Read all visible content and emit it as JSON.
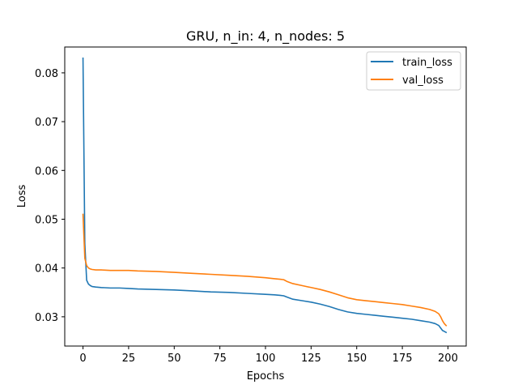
{
  "chart_data": {
    "type": "line",
    "title": "GRU, n_in: 4, n_nodes: 5",
    "xlabel": "Epochs",
    "ylabel": "Loss",
    "xlim": [
      -10,
      210
    ],
    "ylim": [
      0.024,
      0.0853
    ],
    "xticks": [
      0,
      25,
      50,
      75,
      100,
      125,
      150,
      175,
      200
    ],
    "yticks": [
      0.03,
      0.04,
      0.05,
      0.06,
      0.07,
      0.08
    ],
    "ytick_labels": [
      "0.03",
      "0.04",
      "0.05",
      "0.06",
      "0.07",
      "0.08"
    ],
    "legend_position": "upper-right",
    "series": [
      {
        "name": "train_loss",
        "color": "#1f77b4",
        "x": [
          0,
          1,
          2,
          3,
          4,
          5,
          7,
          10,
          15,
          20,
          25,
          30,
          40,
          50,
          60,
          70,
          80,
          90,
          100,
          105,
          108,
          110,
          112,
          115,
          120,
          125,
          130,
          135,
          140,
          145,
          150,
          155,
          160,
          165,
          170,
          175,
          180,
          185,
          190,
          193,
          195,
          196,
          197,
          198,
          199
        ],
        "y": [
          0.083,
          0.045,
          0.0375,
          0.0367,
          0.0364,
          0.0362,
          0.0361,
          0.036,
          0.0359,
          0.0359,
          0.0358,
          0.0357,
          0.0356,
          0.0355,
          0.0353,
          0.0351,
          0.035,
          0.0348,
          0.0346,
          0.0345,
          0.0344,
          0.0343,
          0.034,
          0.0336,
          0.0333,
          0.033,
          0.0326,
          0.0321,
          0.0315,
          0.031,
          0.0307,
          0.0305,
          0.0303,
          0.0301,
          0.0299,
          0.0297,
          0.0295,
          0.0292,
          0.0289,
          0.0286,
          0.0282,
          0.0277,
          0.0272,
          0.027,
          0.0268
        ]
      },
      {
        "name": "val_loss",
        "color": "#ff7f0e",
        "x": [
          0,
          1,
          2,
          3,
          4,
          5,
          7,
          10,
          15,
          20,
          25,
          30,
          40,
          50,
          60,
          70,
          80,
          90,
          100,
          105,
          108,
          110,
          112,
          115,
          120,
          125,
          130,
          135,
          140,
          145,
          150,
          155,
          160,
          165,
          170,
          175,
          180,
          185,
          190,
          193,
          195,
          196,
          197,
          198,
          199
        ],
        "y": [
          0.051,
          0.042,
          0.0405,
          0.04,
          0.0398,
          0.0397,
          0.0396,
          0.0396,
          0.0395,
          0.0395,
          0.0395,
          0.0394,
          0.0393,
          0.0391,
          0.0389,
          0.0387,
          0.0385,
          0.0383,
          0.038,
          0.0378,
          0.0377,
          0.0376,
          0.0372,
          0.0368,
          0.0364,
          0.036,
          0.0356,
          0.0351,
          0.0345,
          0.0339,
          0.0335,
          0.0333,
          0.0331,
          0.0329,
          0.0327,
          0.0325,
          0.0322,
          0.0319,
          0.0315,
          0.0311,
          0.0306,
          0.03,
          0.0292,
          0.0286,
          0.0282
        ]
      }
    ]
  }
}
